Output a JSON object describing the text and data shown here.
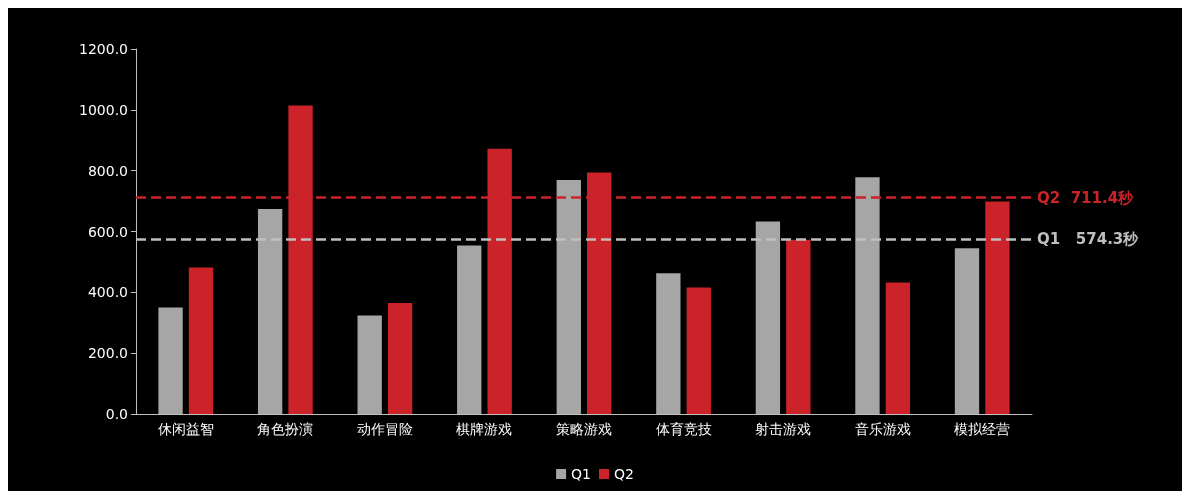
{
  "chart_data": {
    "type": "bar",
    "categories": [
      "休闲益智",
      "角色扮演",
      "动作冒险",
      "棋牌游戏",
      "策略游戏",
      "体育竞技",
      "射击游戏",
      "音乐游戏",
      "模拟经营"
    ],
    "series": [
      {
        "name": "Q1",
        "color": "#a6a6a6",
        "values": [
          350,
          674,
          324,
          554,
          769,
          463,
          633,
          778,
          545
        ]
      },
      {
        "name": "Q2",
        "color": "#cc2229",
        "values": [
          482,
          1014,
          365,
          872,
          794,
          416,
          573,
          432,
          699
        ]
      }
    ],
    "ylim": [
      0,
      1200
    ],
    "yticks": [
      {
        "value": 0,
        "label": "0.0"
      },
      {
        "value": 200,
        "label": "200.0"
      },
      {
        "value": 400,
        "label": "400.0"
      },
      {
        "value": 600,
        "label": "600.0"
      },
      {
        "value": 800,
        "label": "800.0"
      },
      {
        "value": 1000,
        "label": "1000.0"
      },
      {
        "value": 1200,
        "label": "1200.0"
      }
    ],
    "ref_lines": [
      {
        "axis": "y",
        "value": 711.4,
        "label": "Q2  711.4秒",
        "color": "#cc2229",
        "line_style": "dashed"
      },
      {
        "axis": "y",
        "value": 574.3,
        "label": "Q1   574.3秒",
        "color": "#bfbfbf",
        "line_style": "dashed"
      }
    ],
    "grid": false,
    "legend": "bottom"
  }
}
